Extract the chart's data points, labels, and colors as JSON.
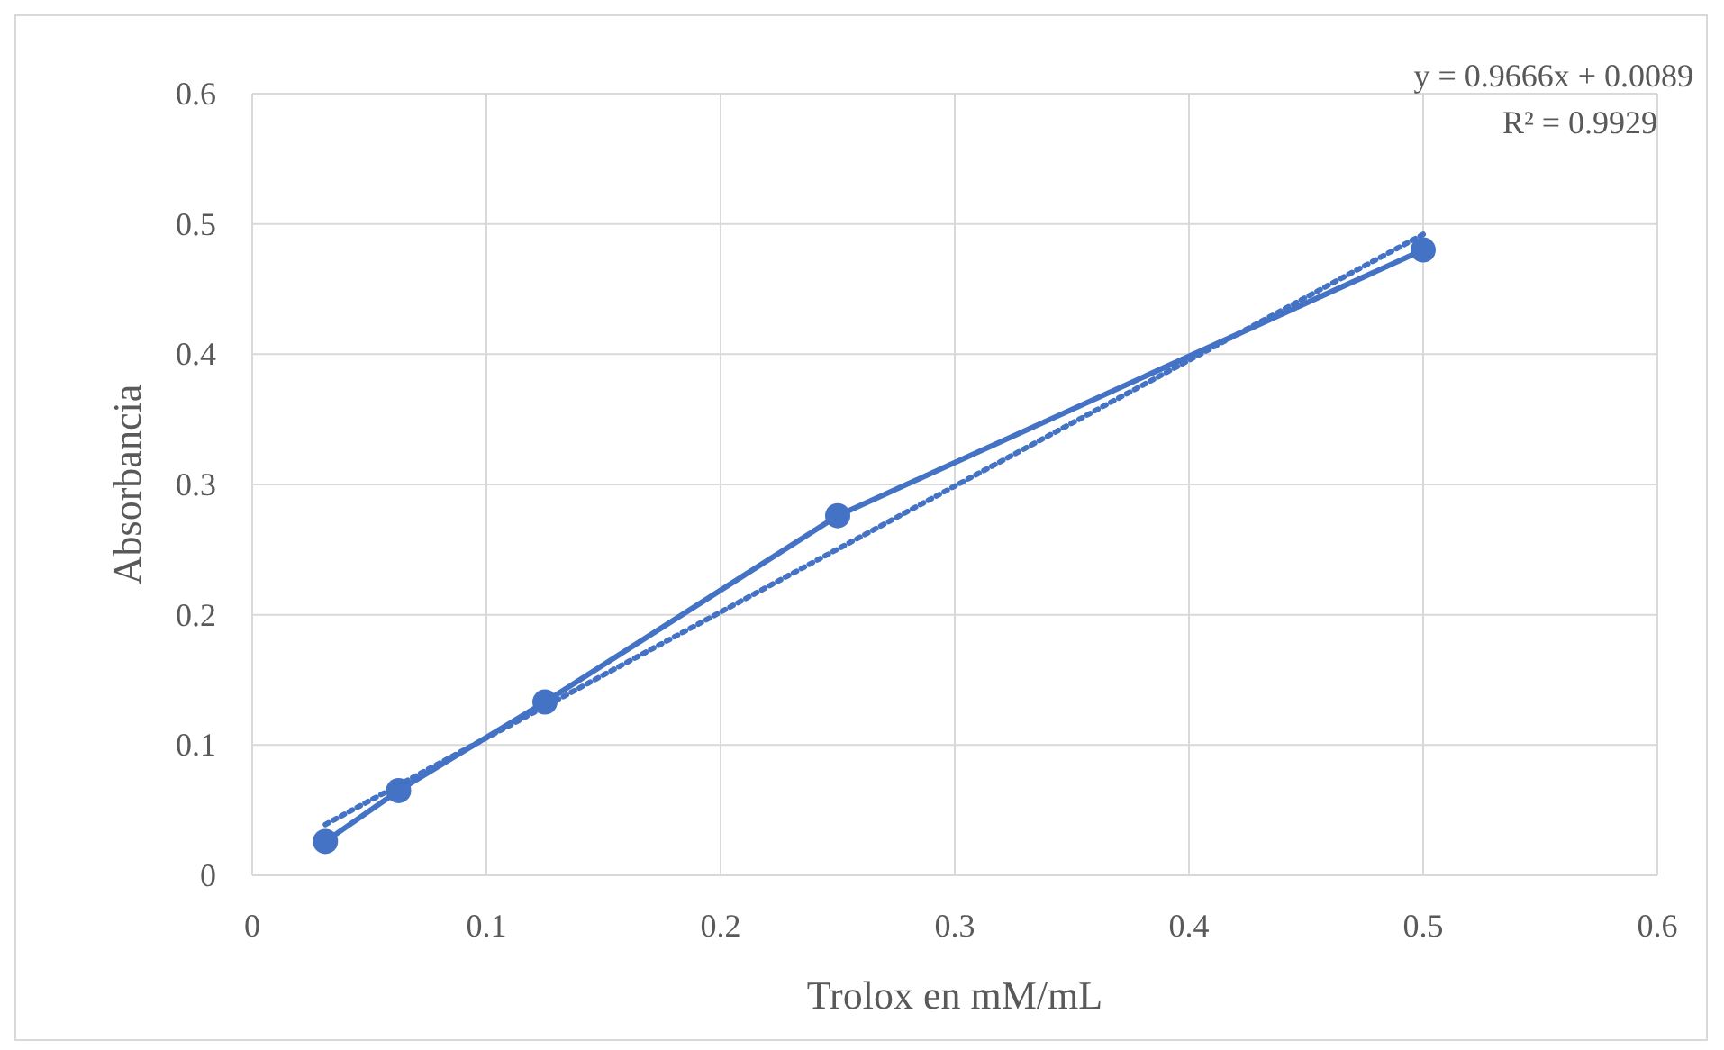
{
  "chart_data": {
    "type": "line",
    "xlabel": "Trolox en mM/mL",
    "ylabel": "Absorbancia",
    "xlim": [
      0,
      0.6
    ],
    "xticks": [
      0,
      0.1,
      0.2,
      0.3,
      0.4,
      0.5,
      0.6
    ],
    "ylim": [
      0,
      0.6
    ],
    "yticks": [
      0,
      0.1,
      0.2,
      0.3,
      0.4,
      0.5,
      0.6
    ],
    "grid": true,
    "series": [
      {
        "color": "#4472c4",
        "marker": "circle",
        "line_style": "solid",
        "x": [
          0.03125,
          0.0625,
          0.125,
          0.25,
          0.5
        ],
        "values": [
          0.026,
          0.065,
          0.133,
          0.276,
          0.48
        ]
      },
      {
        "type": "line",
        "color": "#4472c4",
        "marker": "none",
        "line_style": "dotted",
        "x": [
          0.03125,
          0.5
        ],
        "values": [
          0.039,
          0.492
        ]
      }
    ],
    "annotations": [
      "y = 0.9666x + 0.0089",
      "R² = 0.9929"
    ]
  }
}
